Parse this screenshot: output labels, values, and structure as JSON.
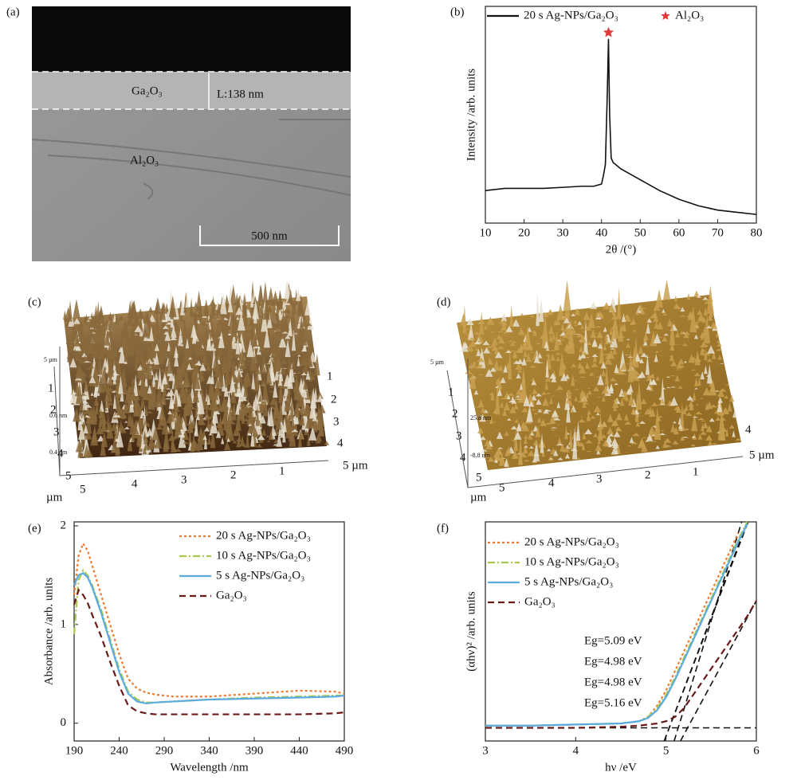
{
  "panels": {
    "a": {
      "label": "(a)",
      "layer_top": "Ga₂O₃",
      "thickness": "L:138 nm",
      "substrate": "Al₂O₃",
      "scale_bar": "500 nm"
    },
    "c": {
      "label": "(c)",
      "left_ticks": [
        1,
        2,
        3,
        4,
        5
      ],
      "z_top": "5 µm",
      "z_ticks": [
        "0.6 nm",
        "0.4 nm"
      ],
      "right_ticks": [
        1,
        2,
        3,
        4
      ],
      "right_end": "5 µm",
      "bottom_ticks": [
        5,
        4,
        3,
        2,
        1
      ],
      "bottom_unit": "µm"
    },
    "d": {
      "label": "(d)",
      "left_ticks": [
        1,
        2,
        3,
        4,
        5
      ],
      "z_top": "5 µm",
      "z_ticks": [
        "25.8 nm",
        "-8.8 nm"
      ],
      "right_ticks": [
        4
      ],
      "right_end": "5 µm",
      "bottom_ticks": [
        5,
        4,
        3,
        2,
        1
      ],
      "bottom_unit": "µm"
    }
  },
  "chart_data": [
    {
      "type": "line",
      "label": "(b)",
      "xlabel": "2θ /(°)",
      "ylabel": "Intensity /arb. units",
      "x": [
        10,
        15,
        20,
        25,
        30,
        35,
        38,
        40,
        40.5,
        41,
        41.5,
        41.8,
        42.1,
        42.5,
        43,
        45,
        50,
        55,
        60,
        65,
        70,
        75,
        80
      ],
      "series": [
        {
          "name": "20 s Ag-NPs/Ga₂O₃",
          "color": "#111111",
          "dash": "solid",
          "values": [
            15,
            16,
            16,
            16,
            16.5,
            17,
            17,
            18,
            22,
            27,
            60,
            85,
            50,
            30,
            28,
            25,
            20,
            15,
            11,
            8,
            6,
            5,
            4
          ]
        }
      ],
      "marker_label": "Al₂O₃",
      "marker_color": "#e03a3a",
      "xlim": [
        10,
        80
      ],
      "ylim": [
        0,
        100
      ],
      "xticks": [
        10,
        20,
        30,
        40,
        50,
        60,
        70,
        80
      ],
      "legend": "upper left"
    },
    {
      "type": "line",
      "label": "(e)",
      "xlabel": "Wavelength /nm",
      "ylabel": "Absorbance /arb. units",
      "x": [
        190,
        195,
        200,
        205,
        210,
        220,
        230,
        240,
        250,
        260,
        270,
        280,
        300,
        340,
        390,
        440,
        480,
        490
      ],
      "series": [
        {
          "name": "20 s Ag-NPs/Ga₂O₃",
          "color": "#f07a30",
          "dash": "dotted",
          "values": [
            1.3,
            1.7,
            1.82,
            1.75,
            1.6,
            1.3,
            1.0,
            0.7,
            0.45,
            0.35,
            0.31,
            0.29,
            0.27,
            0.27,
            0.3,
            0.33,
            0.32,
            0.3
          ]
        },
        {
          "name": "10 s Ag-NPs/Ga₂O₃",
          "color": "#a8c850",
          "dash": "dashdot",
          "values": [
            0.9,
            1.45,
            1.55,
            1.5,
            1.4,
            1.15,
            0.85,
            0.55,
            0.32,
            0.24,
            0.21,
            0.21,
            0.22,
            0.24,
            0.26,
            0.27,
            0.28,
            0.28
          ]
        },
        {
          "name": "5 s Ag-NPs/Ga₂O₃",
          "color": "#5aabe0",
          "dash": "solid",
          "values": [
            1.4,
            1.5,
            1.52,
            1.48,
            1.38,
            1.12,
            0.82,
            0.52,
            0.3,
            0.22,
            0.2,
            0.21,
            0.22,
            0.24,
            0.25,
            0.26,
            0.27,
            0.28
          ]
        },
        {
          "name": "Ga₂O₃",
          "color": "#6b1a1a",
          "dash": "dashed",
          "values": [
            1.2,
            1.35,
            1.3,
            1.22,
            1.1,
            0.88,
            0.62,
            0.38,
            0.18,
            0.12,
            0.1,
            0.09,
            0.09,
            0.09,
            0.09,
            0.09,
            0.1,
            0.11
          ]
        }
      ],
      "xlim": [
        190,
        490
      ],
      "ylim": [
        -0.18,
        2.04
      ],
      "xticks": [
        190,
        240,
        290,
        340,
        390,
        440,
        490
      ],
      "yticks": [
        0,
        1,
        2
      ],
      "legend": "upper right"
    },
    {
      "type": "line",
      "label": "(f)",
      "xlabel": "hν /eV",
      "ylabel": "(αhν)² /arb. units",
      "x": [
        3,
        3.5,
        4,
        4.5,
        4.7,
        4.8,
        4.9,
        5.0,
        5.1,
        5.2,
        5.3,
        5.4,
        5.5,
        5.6,
        5.7,
        5.8,
        5.9,
        6.0
      ],
      "series": [
        {
          "name": "20 s Ag-NPs/Ga₂O₃",
          "color": "#f07a30",
          "dash": "dotted",
          "values": [
            7,
            7,
            7.5,
            8,
            9,
            11,
            16,
            23,
            32,
            41,
            50,
            59,
            68,
            77,
            86,
            95,
            null,
            null
          ]
        },
        {
          "name": "10 s Ag-NPs/Ga₂O₃",
          "color": "#a8c850",
          "dash": "dashdot",
          "values": [
            7,
            7,
            7.5,
            8,
            9,
            11,
            15,
            21,
            29,
            38,
            47,
            56,
            65,
            74,
            83,
            92,
            100,
            null
          ]
        },
        {
          "name": "5 s Ag-NPs/Ga₂O₃",
          "color": "#5aabe0",
          "dash": "solid",
          "values": [
            7,
            7,
            7.5,
            8,
            9,
            10.5,
            14,
            20,
            28,
            37,
            46,
            55,
            64,
            73,
            82,
            91,
            99,
            null
          ]
        },
        {
          "name": "Ga₂O₃",
          "color": "#6b1a1a",
          "dash": "dashed",
          "values": [
            6,
            6,
            6,
            6.5,
            7,
            7.5,
            8,
            9,
            11,
            15,
            21,
            27,
            33,
            39,
            45,
            51,
            57,
            64
          ]
        }
      ],
      "band_gaps": [
        {
          "value": 5.09,
          "label": "Eg=5.09 eV"
        },
        {
          "value": 4.98,
          "label": "Eg=4.98 eV"
        },
        {
          "value": 4.98,
          "label": "Eg=4.98 eV"
        },
        {
          "value": 5.16,
          "label": "Eg=5.16 eV"
        }
      ],
      "xlim": [
        3,
        6
      ],
      "ylim": [
        0,
        100
      ],
      "xticks": [
        3,
        4,
        5,
        6
      ],
      "legend": "upper left"
    }
  ]
}
